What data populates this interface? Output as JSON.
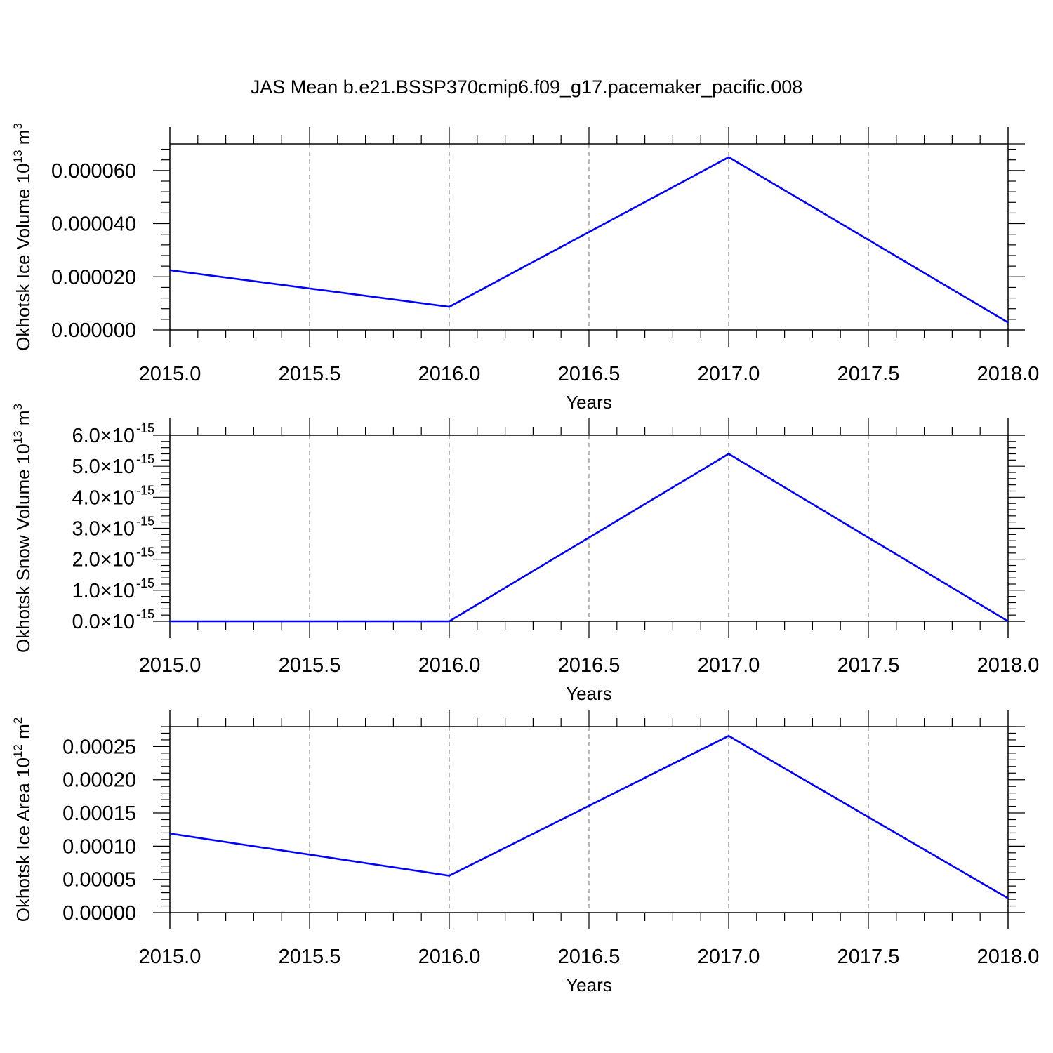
{
  "figure_title": "JAS Mean b.e21.BSSP370cmip6.f09_g17.pacemaker_pacific.008",
  "line_color": "#0000ff",
  "chart_data": [
    {
      "type": "line",
      "title": "",
      "xlabel": "Years",
      "ylabel": "Okhotsk Ice Volume 10",
      "ylabel_exp": "13",
      "ylabel_unit": " m",
      "ylabel_unit_exp": "3",
      "x": [
        2015,
        2016,
        2017,
        2018
      ],
      "series": [
        {
          "values": [
            2.25e-05,
            8.7e-06,
            6.5e-05,
            2.8e-06
          ]
        }
      ],
      "xlim": [
        2015,
        2018
      ],
      "ylim": [
        0,
        7e-05
      ],
      "xticks": [
        2015.0,
        2015.5,
        2016.0,
        2016.5,
        2017.0,
        2017.5,
        2018.0
      ],
      "xtick_labels": [
        "2015.0",
        "2015.5",
        "2016.0",
        "2016.5",
        "2017.0",
        "2017.5",
        "2018.0"
      ],
      "yticks": [
        0,
        2e-05,
        4e-05,
        6e-05
      ],
      "ytick_labels": [
        "0.000000",
        "0.000020",
        "0.000040",
        "0.000060"
      ],
      "ytick_exps": [],
      "y_minor_step": 4e-06,
      "grid": "x-dashed"
    },
    {
      "type": "line",
      "title": "",
      "xlabel": "Years",
      "ylabel": "Okhotsk Snow Volume 10",
      "ylabel_exp": "13",
      "ylabel_unit": " m",
      "ylabel_unit_exp": "3",
      "x": [
        2015,
        2016,
        2017,
        2018
      ],
      "series": [
        {
          "values": [
            0,
            0,
            5.4e-15,
            0
          ]
        }
      ],
      "xlim": [
        2015,
        2018
      ],
      "ylim": [
        0,
        6e-15
      ],
      "xticks": [
        2015.0,
        2015.5,
        2016.0,
        2016.5,
        2017.0,
        2017.5,
        2018.0
      ],
      "xtick_labels": [
        "2015.0",
        "2015.5",
        "2016.0",
        "2016.5",
        "2017.0",
        "2017.5",
        "2018.0"
      ],
      "yticks": [
        0,
        1e-15,
        2e-15,
        3e-15,
        4e-15,
        5e-15,
        6e-15
      ],
      "ytick_labels": [
        "0.0×10",
        "1.0×10",
        "2.0×10",
        "3.0×10",
        "4.0×10",
        "5.0×10",
        "6.0×10"
      ],
      "ytick_exps": [
        "-15",
        "-15",
        "-15",
        "-15",
        "-15",
        "-15",
        "-15"
      ],
      "y_minor_step": 2e-16,
      "grid": "x-dashed"
    },
    {
      "type": "line",
      "title": "",
      "xlabel": "Years",
      "ylabel": "Okhotsk Ice Area 10",
      "ylabel_exp": "12",
      "ylabel_unit": " m",
      "ylabel_unit_exp": "2",
      "x": [
        2015,
        2016,
        2017,
        2018
      ],
      "series": [
        {
          "values": [
            0.000119,
            5.55e-05,
            0.000266,
            2.15e-05
          ]
        }
      ],
      "xlim": [
        2015,
        2018
      ],
      "ylim": [
        0,
        0.00028
      ],
      "xticks": [
        2015.0,
        2015.5,
        2016.0,
        2016.5,
        2017.0,
        2017.5,
        2018.0
      ],
      "xtick_labels": [
        "2015.0",
        "2015.5",
        "2016.0",
        "2016.5",
        "2017.0",
        "2017.5",
        "2018.0"
      ],
      "yticks": [
        0,
        5e-05,
        0.0001,
        0.00015,
        0.0002,
        0.00025
      ],
      "ytick_labels": [
        "0.00000",
        "0.00005",
        "0.00010",
        "0.00015",
        "0.00020",
        "0.00025"
      ],
      "ytick_exps": [],
      "y_minor_step": 1e-05,
      "grid": "x-dashed"
    }
  ]
}
